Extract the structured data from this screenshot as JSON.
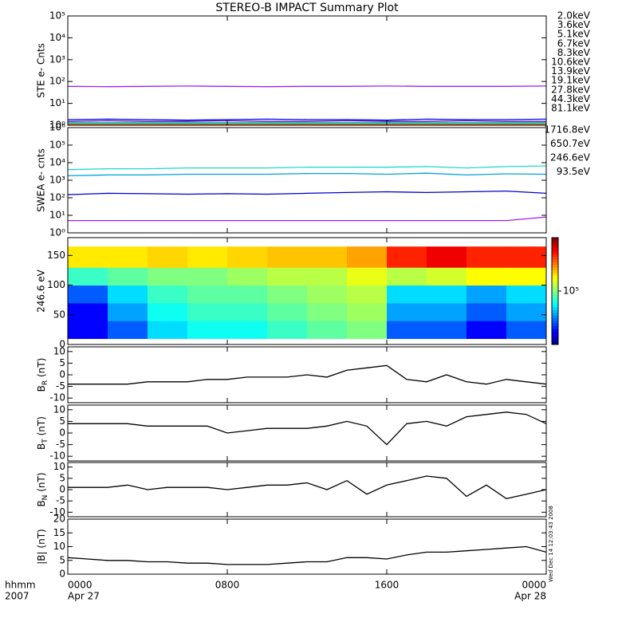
{
  "chart_data": [
    {
      "type": "line",
      "title": "STEREO-B IMPACT Summary Plot",
      "ylabel": "STE e- Cnts",
      "log": true,
      "ylim": [
        1,
        100000
      ],
      "yticks": [
        {
          "value": 1,
          "label": "10⁰"
        },
        {
          "value": 10,
          "label": "10¹"
        },
        {
          "value": 100,
          "label": "10²"
        },
        {
          "value": 1000,
          "label": "10³"
        },
        {
          "value": 10000,
          "label": "10⁴"
        },
        {
          "value": 100000,
          "label": "10⁵"
        }
      ],
      "xlim": [
        0,
        24
      ],
      "x": [
        0,
        2,
        4,
        6,
        8,
        10,
        12,
        14,
        16,
        18,
        20,
        22,
        24
      ],
      "series": [
        {
          "name": "2.0keV",
          "color": "#a020f0",
          "values": [
            60,
            58,
            60,
            62,
            60,
            58,
            60,
            60,
            62,
            60,
            60,
            60,
            62
          ]
        },
        {
          "name": "3.6keV",
          "color": "#5020a0",
          "values": [
            1.5,
            1.6,
            1.5,
            1.5,
            1.6,
            1.5,
            1.5,
            1.6,
            1.5,
            1.5,
            1.6,
            1.5,
            1.5
          ]
        },
        {
          "name": "5.1keV",
          "color": "#0000ff",
          "values": [
            1.8,
            1.9,
            1.8,
            1.7,
            1.8,
            1.9,
            1.8,
            1.8,
            1.7,
            1.9,
            1.8,
            1.8,
            1.9
          ]
        },
        {
          "name": "6.7keV",
          "color": "#1e90d0",
          "values": [
            1.3,
            1.3,
            1.3,
            1.3,
            1.3,
            1.3,
            1.3,
            1.3,
            1.3,
            1.3,
            1.3,
            1.3,
            1.3
          ]
        },
        {
          "name": "8.3keV",
          "color": "#00c8c8",
          "values": [
            1.2,
            1.2,
            1.2,
            1.2,
            1.2,
            1.2,
            1.2,
            1.2,
            1.2,
            1.2,
            1.2,
            1.2,
            1.2
          ]
        },
        {
          "name": "10.6keV",
          "color": "#00c890",
          "values": [
            1.15,
            1.15,
            1.15,
            1.15,
            1.15,
            1.15,
            1.15,
            1.15,
            1.15,
            1.15,
            1.15,
            1.15,
            1.15
          ]
        },
        {
          "name": "13.9keV",
          "color": "#30c030",
          "values": [
            1.1,
            1.1,
            1.1,
            1.1,
            1.1,
            1.1,
            1.1,
            1.1,
            1.1,
            1.1,
            1.1,
            1.1,
            1.1
          ]
        },
        {
          "name": "19.1keV",
          "color": "#b0c800",
          "values": [
            1.05,
            1.05,
            1.05,
            1.05,
            1.05,
            1.05,
            1.05,
            1.05,
            1.05,
            1.05,
            1.05,
            1.05,
            1.05
          ]
        },
        {
          "name": "27.8keV",
          "color": "#e8c000",
          "values": [
            1.05,
            1.05,
            1.05,
            1.05,
            1.05,
            1.05,
            1.05,
            1.05,
            1.05,
            1.05,
            1.05,
            1.05,
            1.05
          ]
        },
        {
          "name": "44.3keV",
          "color": "#ff9000",
          "values": [
            1.1,
            1.1,
            1.1,
            1.1,
            1.1,
            1.1,
            1.1,
            1.1,
            1.1,
            1.1,
            1.1,
            1.1,
            1.1
          ]
        },
        {
          "name": "81.1keV",
          "color": "#e02020",
          "values": [
            1.02,
            1.02,
            1.02,
            1.02,
            1.02,
            1.02,
            1.02,
            1.02,
            1.02,
            1.02,
            1.02,
            1.02,
            1.02
          ]
        }
      ]
    },
    {
      "type": "line",
      "ylabel": "SWEA e- cnts",
      "log": true,
      "ylim": [
        1,
        1000000
      ],
      "yticks": [
        {
          "value": 1,
          "label": "10⁰"
        },
        {
          "value": 10,
          "label": "10¹"
        },
        {
          "value": 100,
          "label": "10²"
        },
        {
          "value": 1000,
          "label": "10³"
        },
        {
          "value": 10000,
          "label": "10⁴"
        },
        {
          "value": 100000,
          "label": "10⁵"
        },
        {
          "value": 1000000,
          "label": "10⁶"
        }
      ],
      "xlim": [
        0,
        24
      ],
      "x": [
        0,
        2,
        4,
        6,
        8,
        10,
        12,
        14,
        16,
        18,
        20,
        22,
        24
      ],
      "series": [
        {
          "name": "1716.8eV",
          "color": "#a020f0",
          "values": [
            5,
            5,
            5,
            5,
            5,
            5,
            5,
            5,
            5,
            5,
            5,
            5,
            8
          ]
        },
        {
          "name": "650.7eV",
          "color": "#0000c8",
          "values": [
            150,
            180,
            170,
            160,
            170,
            160,
            180,
            200,
            220,
            200,
            220,
            240,
            180
          ]
        },
        {
          "name": "246.6eV",
          "color": "#00a0e0",
          "values": [
            1800,
            2000,
            2000,
            2200,
            2200,
            2200,
            2400,
            2400,
            2200,
            2500,
            2000,
            2300,
            2200
          ]
        },
        {
          "name": "93.5eV",
          "color": "#20d8d0",
          "values": [
            4000,
            4500,
            4500,
            5000,
            5000,
            5000,
            5500,
            5500,
            5500,
            6000,
            5000,
            6000,
            6500
          ]
        }
      ]
    },
    {
      "type": "heatmap",
      "ylabel": "246.6 eV",
      "ylim": [
        0,
        180
      ],
      "yticks": [
        0,
        50,
        100,
        150
      ],
      "xlim": [
        0,
        24
      ],
      "x_edges": [
        0,
        2,
        4,
        6,
        8,
        10,
        12,
        14,
        16,
        18,
        20,
        22,
        24
      ],
      "y_edges": [
        10,
        40,
        70,
        100,
        130,
        165
      ],
      "z": [
        [
          30000,
          40000,
          60000,
          70000,
          70000,
          80000,
          90000,
          100000,
          40000,
          40000,
          30000,
          40000
        ],
        [
          30000,
          50000,
          70000,
          80000,
          80000,
          90000,
          100000,
          110000,
          50000,
          50000,
          40000,
          50000
        ],
        [
          40000,
          60000,
          80000,
          90000,
          90000,
          100000,
          110000,
          120000,
          60000,
          60000,
          50000,
          60000
        ],
        [
          80000,
          90000,
          100000,
          100000,
          110000,
          120000,
          120000,
          140000,
          120000,
          130000,
          150000,
          150000
        ],
        [
          160000,
          160000,
          170000,
          160000,
          170000,
          180000,
          180000,
          200000,
          300000,
          350000,
          300000,
          300000
        ]
      ],
      "clim": [
        20000,
        500000
      ],
      "cticks": [
        {
          "value": 100000,
          "label": "10⁵"
        }
      ]
    },
    {
      "type": "line",
      "ylabel": {
        "main": "B",
        "sub": "R",
        "unit": " (nT)"
      },
      "ylim": [
        -12,
        12
      ],
      "yticks": [
        10,
        5,
        0,
        -5,
        -10
      ],
      "xlim": [
        0,
        24
      ],
      "x": [
        0,
        1,
        2,
        3,
        4,
        5,
        6,
        7,
        8,
        9,
        10,
        11,
        12,
        13,
        14,
        15,
        16,
        17,
        18,
        19,
        20,
        21,
        22,
        23,
        24
      ],
      "series": [
        {
          "name": "BR",
          "color": "#000000",
          "values": [
            -4,
            -4,
            -4,
            -4,
            -3,
            -3,
            -3,
            -2,
            -2,
            -1,
            -1,
            -1,
            0,
            -1,
            2,
            3,
            4,
            -2,
            -3,
            0,
            -3,
            -4,
            -2,
            -3,
            -4
          ]
        }
      ]
    },
    {
      "type": "line",
      "ylabel": {
        "main": "B",
        "sub": "T",
        "unit": " (nT)"
      },
      "ylim": [
        -12,
        12
      ],
      "yticks": [
        10,
        5,
        0,
        -5,
        -10
      ],
      "xlim": [
        0,
        24
      ],
      "x": [
        0,
        1,
        2,
        3,
        4,
        5,
        6,
        7,
        8,
        9,
        10,
        11,
        12,
        13,
        14,
        15,
        16,
        17,
        18,
        19,
        20,
        21,
        22,
        23,
        24
      ],
      "series": [
        {
          "name": "BT",
          "color": "#000000",
          "values": [
            4,
            4,
            4,
            4,
            3,
            3,
            3,
            3,
            0,
            1,
            2,
            2,
            2,
            3,
            5,
            3,
            -5,
            4,
            5,
            3,
            7,
            8,
            9,
            8,
            4
          ]
        }
      ]
    },
    {
      "type": "line",
      "ylabel": {
        "main": "B",
        "sub": "N",
        "unit": " (nT)"
      },
      "ylim": [
        -12,
        12
      ],
      "yticks": [
        10,
        5,
        0,
        -5,
        -10
      ],
      "xlim": [
        0,
        24
      ],
      "x": [
        0,
        1,
        2,
        3,
        4,
        5,
        6,
        7,
        8,
        9,
        10,
        11,
        12,
        13,
        14,
        15,
        16,
        17,
        18,
        19,
        20,
        21,
        22,
        23,
        24
      ],
      "series": [
        {
          "name": "BN",
          "color": "#000000",
          "values": [
            1,
            1,
            1,
            2,
            0,
            1,
            1,
            1,
            0,
            1,
            2,
            2,
            3,
            0,
            4,
            -2,
            2,
            4,
            6,
            5,
            -3,
            2,
            -4,
            -2,
            0
          ]
        }
      ]
    },
    {
      "type": "line",
      "ylabel": {
        "main": "|B|",
        "unit": " (nT)"
      },
      "ylim": [
        0,
        20
      ],
      "yticks": [
        0,
        5,
        10,
        15,
        20
      ],
      "xlim": [
        0,
        24
      ],
      "x": [
        0,
        1,
        2,
        3,
        4,
        5,
        6,
        7,
        8,
        9,
        10,
        11,
        12,
        13,
        14,
        15,
        16,
        17,
        18,
        19,
        20,
        21,
        22,
        23,
        24
      ],
      "series": [
        {
          "name": "|B|",
          "color": "#000000",
          "values": [
            6,
            5.5,
            5,
            5,
            4.5,
            4.5,
            4,
            4,
            3.5,
            3.5,
            3.5,
            4,
            4.5,
            4.5,
            6,
            6,
            5.5,
            7,
            8,
            8,
            8.5,
            9,
            9.5,
            10,
            8
          ]
        }
      ],
      "xticks": [
        {
          "value": 0,
          "label": "0000"
        },
        {
          "value": 8,
          "label": "0800"
        },
        {
          "value": 16,
          "label": "1600"
        },
        {
          "value": 24,
          "label": "0000"
        }
      ],
      "date_labels": [
        {
          "value": 0,
          "label": "Apr 27"
        },
        {
          "value": 24,
          "label": "Apr 28"
        }
      ],
      "xlabel": "hhmm",
      "year": "2007",
      "timestamp": "Wed Dec 14 12:03:43 2008"
    }
  ]
}
